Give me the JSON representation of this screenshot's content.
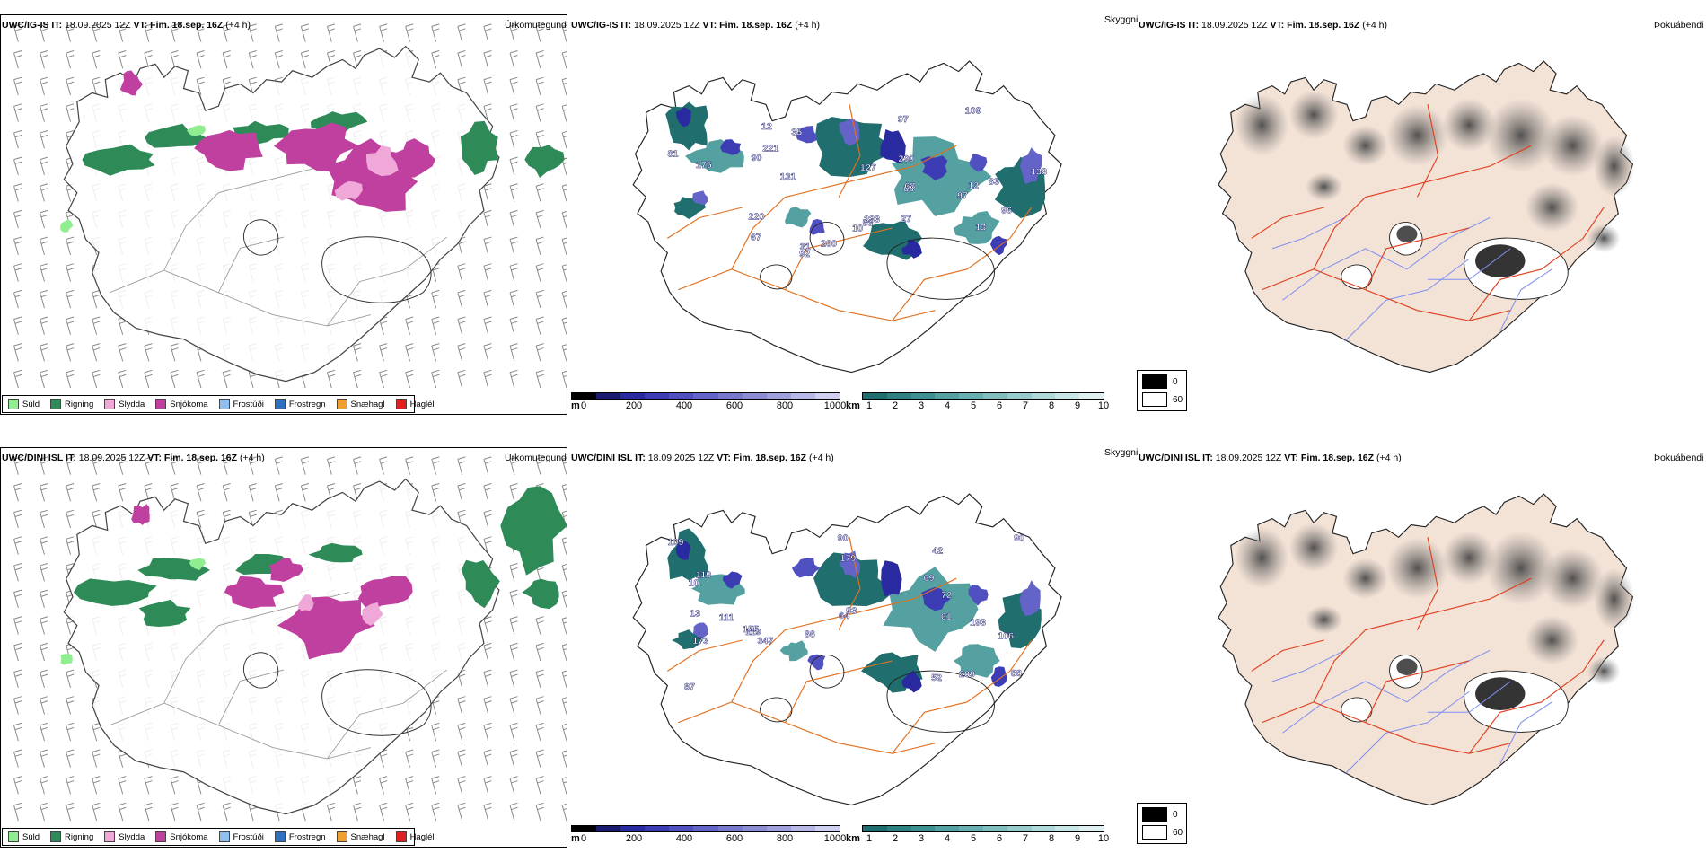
{
  "rows": [
    {
      "model": "UWC/IG-IS",
      "it_label": "IT:",
      "it_value": "18.09.2025 12Z",
      "vt_label": "VT:",
      "vt_value": "Fim. 18.sep. 16Z",
      "lead": "(+4 h)"
    },
    {
      "model": "UWC/DINI ISL",
      "it_label": "IT:",
      "it_value": "18.09.2025 12Z",
      "vt_label": "VT:",
      "vt_value": "Fim. 18.sep. 16Z",
      "lead": "(+4 h)"
    }
  ],
  "panel_titles": {
    "precip": "Úrkomutegund",
    "visibility": "Skyggni",
    "fog": "Þokuábendi"
  },
  "precip_legend": [
    {
      "label": "Súld",
      "color": "#90ee90"
    },
    {
      "label": "Rigning",
      "color": "#2e8b57"
    },
    {
      "label": "Slydda",
      "color": "#f0a8d8"
    },
    {
      "label": "Snjókoma",
      "color": "#c040a0"
    },
    {
      "label": "Frostúði",
      "color": "#90c0f0"
    },
    {
      "label": "Frostregn",
      "color": "#3070c0"
    },
    {
      "label": "Snæhagl",
      "color": "#f0a030"
    },
    {
      "label": "Haglél",
      "color": "#e02020"
    }
  ],
  "ceiling_scale": {
    "unit": "m",
    "ticks": [
      "0",
      "200",
      "400",
      "600",
      "800",
      "1000"
    ],
    "colors": [
      "#000000",
      "#1a1a6e",
      "#2a2aa0",
      "#3c3cb4",
      "#5050c0",
      "#6464c8",
      "#7878cc",
      "#8c8cd2",
      "#a0a0dc",
      "#b8b8e6",
      "#d0d0f0"
    ]
  },
  "visibility_scale": {
    "unit": "km",
    "ticks": [
      "1",
      "2",
      "3",
      "4",
      "5",
      "6",
      "7",
      "8",
      "9",
      "10"
    ],
    "colors": [
      "#206e6e",
      "#2f8080",
      "#3f9090",
      "#55a0a0",
      "#6aafaf",
      "#80bebe",
      "#98cccc",
      "#b0dada",
      "#c8e6e6",
      "#e0f0f0"
    ]
  },
  "fog_legend": [
    {
      "label": "0",
      "color": "#000000"
    },
    {
      "label": "60",
      "color": "#ffffff"
    }
  ],
  "ceiling_labels": {
    "top": [
      "81",
      "63",
      "12",
      "35",
      "90",
      "67",
      "133",
      "97",
      "68",
      "220",
      "27",
      "109",
      "175",
      "127",
      "53",
      "97",
      "290",
      "221",
      "96",
      "31",
      "233",
      "131",
      "12",
      "13",
      "92",
      "200",
      "83",
      "10"
    ],
    "bottom": [
      "109",
      "64",
      "72",
      "90",
      "13",
      "119",
      "209",
      "93",
      "66",
      "155",
      "173",
      "179",
      "119",
      "52",
      "88",
      "90",
      "87",
      "193",
      "111",
      "347",
      "61",
      "69",
      "42",
      "10",
      "106"
    ]
  }
}
